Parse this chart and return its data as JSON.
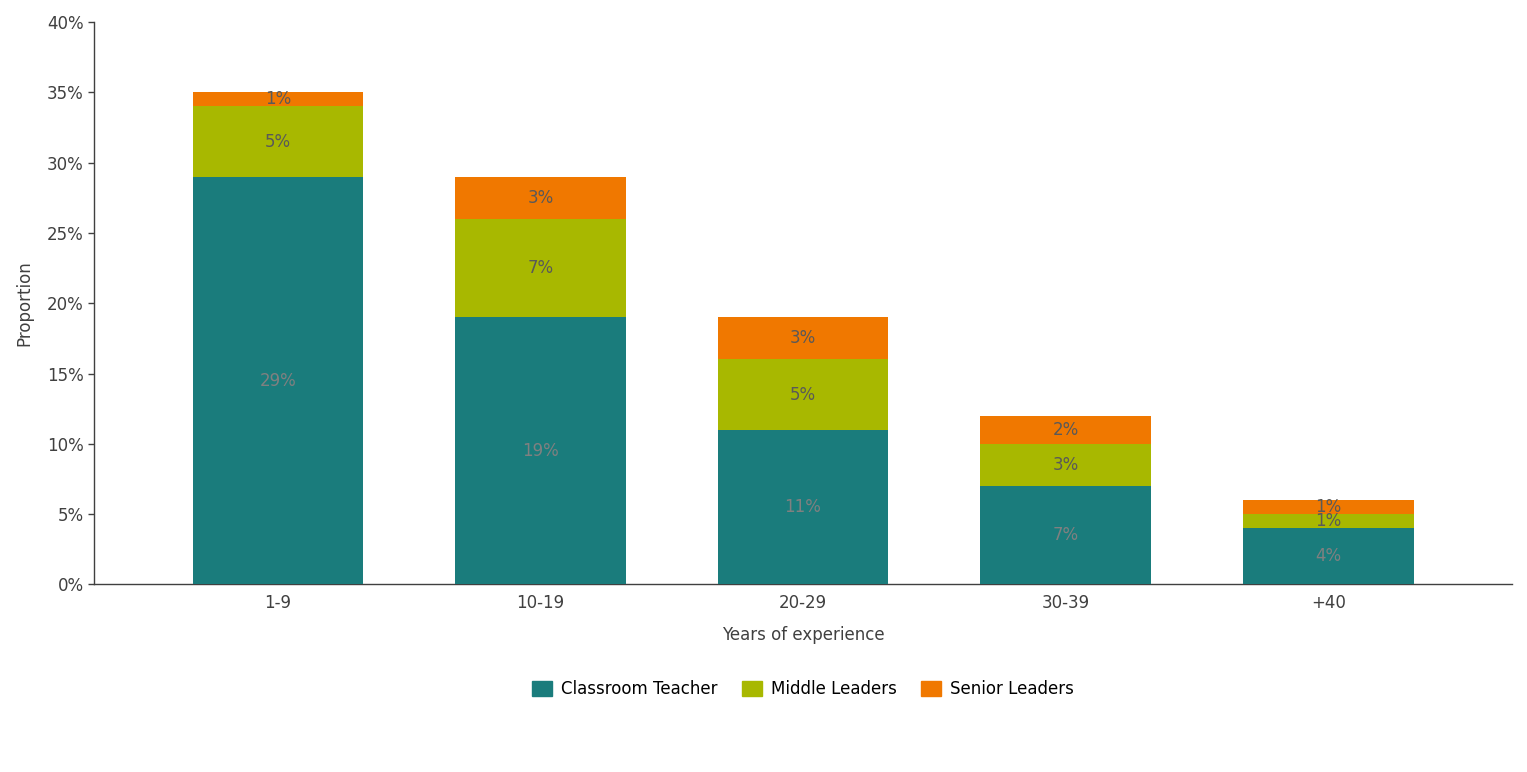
{
  "categories": [
    "1-9",
    "10-19",
    "20-29",
    "30-39",
    "+40"
  ],
  "classroom_teacher": [
    29,
    19,
    11,
    7,
    4
  ],
  "middle_leaders": [
    5,
    7,
    5,
    3,
    1
  ],
  "senior_leaders": [
    1,
    3,
    3,
    2,
    1
  ],
  "classroom_teacher_labels": [
    "29%",
    "19%",
    "11%",
    "7%",
    "4%"
  ],
  "middle_leaders_labels": [
    "5%",
    "7%",
    "5%",
    "3%",
    "1%"
  ],
  "senior_leaders_labels": [
    "1%",
    "3%",
    "3%",
    "2%",
    "1%"
  ],
  "color_classroom": "#1a7c7c",
  "color_middle": "#a8b800",
  "color_senior": "#f07800",
  "xlabel": "Years of experience",
  "ylabel": "Proportion",
  "ylim": [
    0,
    40
  ],
  "yticks": [
    0,
    5,
    10,
    15,
    20,
    25,
    30,
    35,
    40
  ],
  "ytick_labels": [
    "0%",
    "5%",
    "10%",
    "15%",
    "20%",
    "25%",
    "30%",
    "35%",
    "40%"
  ],
  "legend_labels": [
    "Classroom Teacher",
    "Middle Leaders",
    "Senior Leaders"
  ],
  "bar_width": 0.65,
  "label_color_ct": "#808080",
  "label_color_ml": "#595959",
  "label_color_sl": "#595959",
  "background_color": "#ffffff",
  "label_fontsize": 12,
  "tick_fontsize": 12,
  "legend_fontsize": 12,
  "axis_color": "#404040",
  "spine_color": "#404040"
}
